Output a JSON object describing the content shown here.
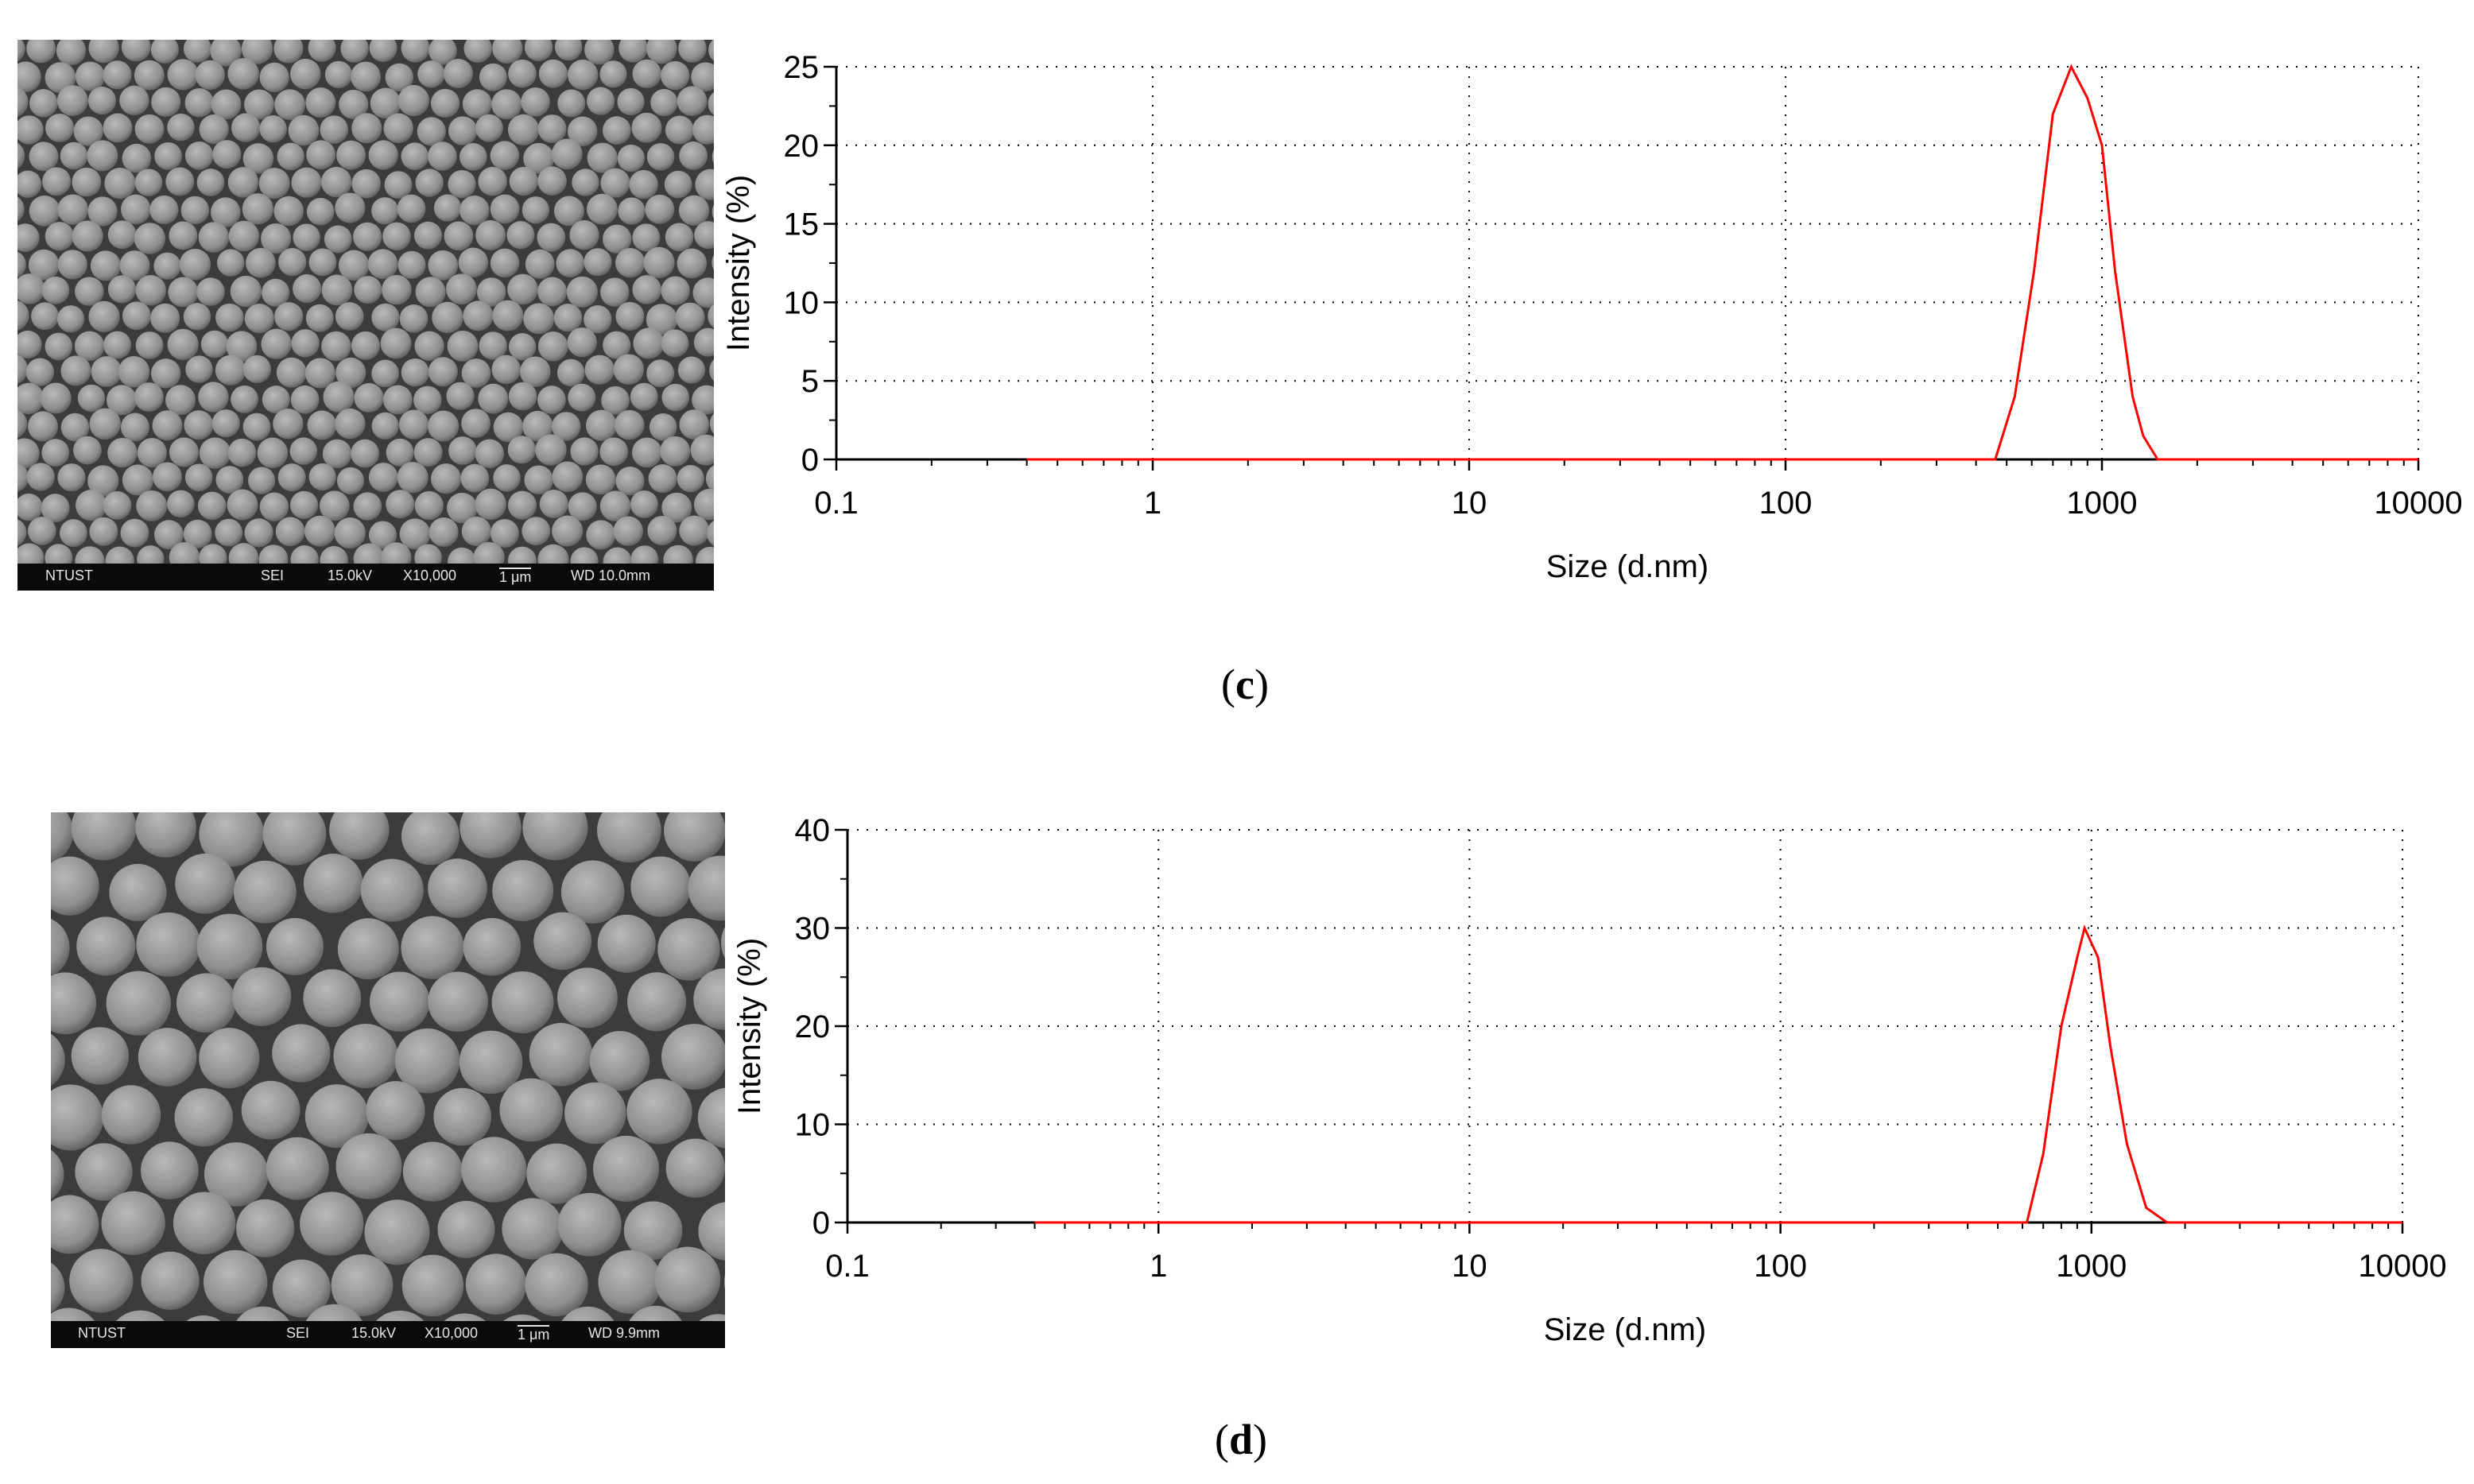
{
  "sem_images": [
    {
      "bar": {
        "lab": "NTUST",
        "mode": "SEI",
        "voltage": "15.0kV",
        "magnification": "X10,000",
        "scale": "1 μm",
        "working_distance": "WD 10.0mm"
      }
    },
    {
      "bar": {
        "lab": "NTUST",
        "mode": "SEI",
        "voltage": "15.0kV",
        "magnification": "X10,000",
        "scale": "1 μm",
        "working_distance": "WD 9.9mm"
      }
    }
  ],
  "panel_labels": [
    {
      "open": "(",
      "letter": "c",
      "close": ")"
    },
    {
      "open": "(",
      "letter": "d",
      "close": ")"
    }
  ],
  "colors": {
    "series": "#ff0000",
    "axis": "#000000",
    "grid": "#000000"
  },
  "chart_data": [
    {
      "type": "line",
      "xlabel": "Size (d.nm)",
      "ylabel": "Intensity (%)",
      "xscale": "log",
      "xlim": [
        0.1,
        10000
      ],
      "ylim": [
        0,
        25
      ],
      "yticks": [
        "0",
        "5",
        "10",
        "15",
        "20",
        "25"
      ],
      "xticks": [
        "0.1",
        "1",
        "10",
        "100",
        "1000",
        "10000"
      ],
      "grid": true,
      "series": [
        {
          "x": [
            0.4,
            460,
            530,
            610,
            700,
            800,
            900,
            1000,
            1100,
            1250,
            1350,
            1500,
            10000
          ],
          "y": [
            0,
            0,
            4,
            12,
            22,
            25,
            23,
            20,
            12,
            4,
            1.5,
            0,
            0
          ]
        }
      ]
    },
    {
      "type": "line",
      "xlabel": "Size (d.nm)",
      "ylabel": "Intensity (%)",
      "xscale": "log",
      "xlim": [
        0.1,
        10000
      ],
      "ylim": [
        0,
        40
      ],
      "yticks": [
        "0",
        "10",
        "20",
        "30",
        "40"
      ],
      "xticks": [
        "0.1",
        "1",
        "10",
        "100",
        "1000",
        "10000"
      ],
      "grid": true,
      "series": [
        {
          "x": [
            0.4,
            620,
            700,
            800,
            900,
            950,
            1050,
            1150,
            1300,
            1500,
            1750,
            10000
          ],
          "y": [
            0,
            0,
            7,
            20,
            27,
            30,
            27,
            18,
            8,
            1.5,
            0,
            0
          ]
        }
      ]
    }
  ]
}
